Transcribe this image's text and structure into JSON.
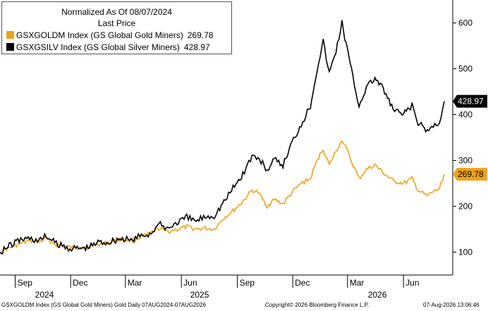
{
  "legend": {
    "title_line1": "Normalized As Of 08/07/2024",
    "title_line2": "Last Price"
  },
  "footer": {
    "left": "GSXGOLDM Index (GS Global Gold Miners) Gold Daily 07AUG2024-07AUG2026",
    "center": "Copyright© 2026 Bloomberg Finance L.P.",
    "right": "07-Aug-2026 13:06:46"
  },
  "chart_data": {
    "type": "line",
    "title": "",
    "xlabel": "",
    "ylabel": "",
    "ylim": [
      50,
      650
    ],
    "y_ticks": [
      100,
      200,
      300,
      400,
      500,
      600
    ],
    "y_axis_side": "right",
    "x_range": [
      "2024-08-07",
      "2026-08-07"
    ],
    "x_ticks": [
      {
        "date": "2024-09-01",
        "label": "Sep"
      },
      {
        "date": "2024-12-01",
        "label": "Dec"
      },
      {
        "date": "2025-03-01",
        "label": "Mar"
      },
      {
        "date": "2025-06-01",
        "label": "Jun"
      },
      {
        "date": "2025-09-01",
        "label": "Sep"
      },
      {
        "date": "2025-12-01",
        "label": "Dec"
      },
      {
        "date": "2026-03-01",
        "label": "Mar"
      },
      {
        "date": "2026-06-01",
        "label": "Jun"
      }
    ],
    "year_labels": [
      {
        "date": "2024-10-19",
        "label": "2024"
      },
      {
        "date": "2025-07-01",
        "label": "2025"
      },
      {
        "date": "2026-04-19",
        "label": "2026"
      }
    ],
    "grid": false,
    "legend_position": "top-left",
    "series": [
      {
        "name": "GSXGOLDM Index (GS Global Gold Miners)",
        "last_value": "269.78",
        "color": "#f0a21c",
        "points": [
          [
            "2024-08-07",
            100
          ],
          [
            "2024-08-20",
            108
          ],
          [
            "2024-09-10",
            118
          ],
          [
            "2024-09-25",
            125
          ],
          [
            "2024-10-10",
            122
          ],
          [
            "2024-10-22",
            130
          ],
          [
            "2024-11-05",
            118
          ],
          [
            "2024-11-20",
            112
          ],
          [
            "2024-12-05",
            110
          ],
          [
            "2024-12-30",
            110
          ],
          [
            "2025-01-15",
            118
          ],
          [
            "2025-02-01",
            120
          ],
          [
            "2025-02-20",
            128
          ],
          [
            "2025-03-10",
            125
          ],
          [
            "2025-03-25",
            132
          ],
          [
            "2025-04-10",
            140
          ],
          [
            "2025-04-25",
            152
          ],
          [
            "2025-05-10",
            145
          ],
          [
            "2025-05-25",
            150
          ],
          [
            "2025-06-10",
            155
          ],
          [
            "2025-06-25",
            150
          ],
          [
            "2025-07-10",
            152
          ],
          [
            "2025-07-25",
            150
          ],
          [
            "2025-08-10",
            175
          ],
          [
            "2025-08-25",
            190
          ],
          [
            "2025-09-10",
            210
          ],
          [
            "2025-09-25",
            235
          ],
          [
            "2025-10-05",
            230
          ],
          [
            "2025-10-20",
            200
          ],
          [
            "2025-11-01",
            215
          ],
          [
            "2025-11-15",
            205
          ],
          [
            "2025-11-30",
            230
          ],
          [
            "2025-12-15",
            250
          ],
          [
            "2025-12-30",
            260
          ],
          [
            "2026-01-10",
            300
          ],
          [
            "2026-01-20",
            325
          ],
          [
            "2026-01-30",
            290
          ],
          [
            "2026-02-10",
            320
          ],
          [
            "2026-02-20",
            345
          ],
          [
            "2026-03-01",
            320
          ],
          [
            "2026-03-10",
            290
          ],
          [
            "2026-03-20",
            260
          ],
          [
            "2026-04-01",
            280
          ],
          [
            "2026-04-15",
            290
          ],
          [
            "2026-05-01",
            270
          ],
          [
            "2026-05-15",
            255
          ],
          [
            "2026-06-01",
            250
          ],
          [
            "2026-06-15",
            260
          ],
          [
            "2026-06-25",
            235
          ],
          [
            "2026-07-10",
            222
          ],
          [
            "2026-07-20",
            232
          ],
          [
            "2026-07-30",
            238
          ],
          [
            "2026-08-07",
            269.78
          ]
        ]
      },
      {
        "name": "GSXGSILV Index (GS Global Silver Miners)",
        "last_value": "428.97",
        "color": "#000000",
        "points": [
          [
            "2024-08-07",
            100
          ],
          [
            "2024-08-20",
            112
          ],
          [
            "2024-09-10",
            128
          ],
          [
            "2024-09-25",
            130
          ],
          [
            "2024-10-10",
            125
          ],
          [
            "2024-10-22",
            135
          ],
          [
            "2024-11-05",
            120
          ],
          [
            "2024-11-20",
            112
          ],
          [
            "2024-12-05",
            108
          ],
          [
            "2024-12-30",
            110
          ],
          [
            "2025-01-15",
            122
          ],
          [
            "2025-02-01",
            122
          ],
          [
            "2025-02-20",
            130
          ],
          [
            "2025-03-10",
            125
          ],
          [
            "2025-03-25",
            135
          ],
          [
            "2025-04-10",
            140
          ],
          [
            "2025-04-25",
            160
          ],
          [
            "2025-05-10",
            152
          ],
          [
            "2025-05-25",
            165
          ],
          [
            "2025-06-10",
            175
          ],
          [
            "2025-06-25",
            168
          ],
          [
            "2025-07-10",
            178
          ],
          [
            "2025-07-25",
            180
          ],
          [
            "2025-08-10",
            210
          ],
          [
            "2025-08-25",
            240
          ],
          [
            "2025-09-10",
            270
          ],
          [
            "2025-09-25",
            310
          ],
          [
            "2025-10-05",
            305
          ],
          [
            "2025-10-20",
            280
          ],
          [
            "2025-11-01",
            300
          ],
          [
            "2025-11-15",
            290
          ],
          [
            "2025-11-30",
            340
          ],
          [
            "2025-12-15",
            380
          ],
          [
            "2025-12-30",
            420
          ],
          [
            "2026-01-10",
            500
          ],
          [
            "2026-01-20",
            560
          ],
          [
            "2026-01-30",
            490
          ],
          [
            "2026-02-10",
            540
          ],
          [
            "2026-02-20",
            600
          ],
          [
            "2026-03-01",
            540
          ],
          [
            "2026-03-10",
            480
          ],
          [
            "2026-03-20",
            420
          ],
          [
            "2026-04-01",
            460
          ],
          [
            "2026-04-15",
            480
          ],
          [
            "2026-05-01",
            450
          ],
          [
            "2026-05-15",
            410
          ],
          [
            "2026-06-01",
            400
          ],
          [
            "2026-06-15",
            420
          ],
          [
            "2026-06-25",
            380
          ],
          [
            "2026-07-10",
            365
          ],
          [
            "2026-07-20",
            375
          ],
          [
            "2026-07-30",
            385
          ],
          [
            "2026-08-07",
            428.97
          ]
        ]
      }
    ]
  }
}
